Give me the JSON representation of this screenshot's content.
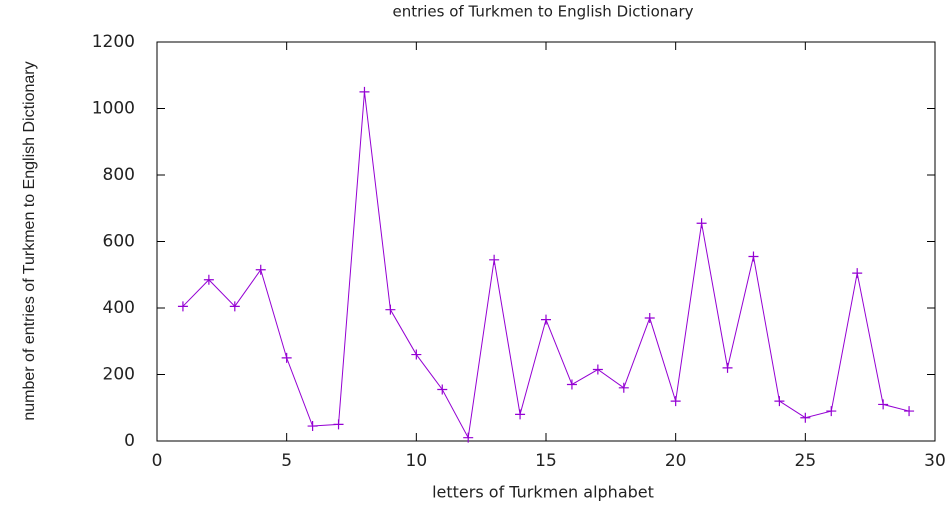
{
  "chart_data": {
    "type": "line",
    "title": "entries of Turkmen to English Dictionary",
    "x_label": "letters of Turkmen alphabet",
    "y_label": "number of entries of Turkmen to English Dictionary",
    "x": [
      1,
      2,
      3,
      4,
      5,
      6,
      7,
      8,
      9,
      10,
      11,
      12,
      13,
      14,
      15,
      16,
      17,
      18,
      19,
      20,
      21,
      22,
      23,
      24,
      25,
      26,
      27,
      28,
      29
    ],
    "series": [
      {
        "color": "#9400d3",
        "values": [
          405,
          485,
          405,
          515,
          250,
          45,
          50,
          1050,
          395,
          260,
          155,
          10,
          545,
          80,
          365,
          170,
          215,
          160,
          370,
          120,
          655,
          220,
          555,
          120,
          70,
          90,
          505,
          110,
          90
        ]
      }
    ],
    "xlim": [
      0,
      30
    ],
    "xticks": [
      0,
      5,
      10,
      15,
      20,
      25,
      30
    ],
    "ylim": [
      0,
      1200
    ],
    "yticks": [
      0,
      200,
      400,
      600,
      800,
      1000,
      1200
    ]
  }
}
